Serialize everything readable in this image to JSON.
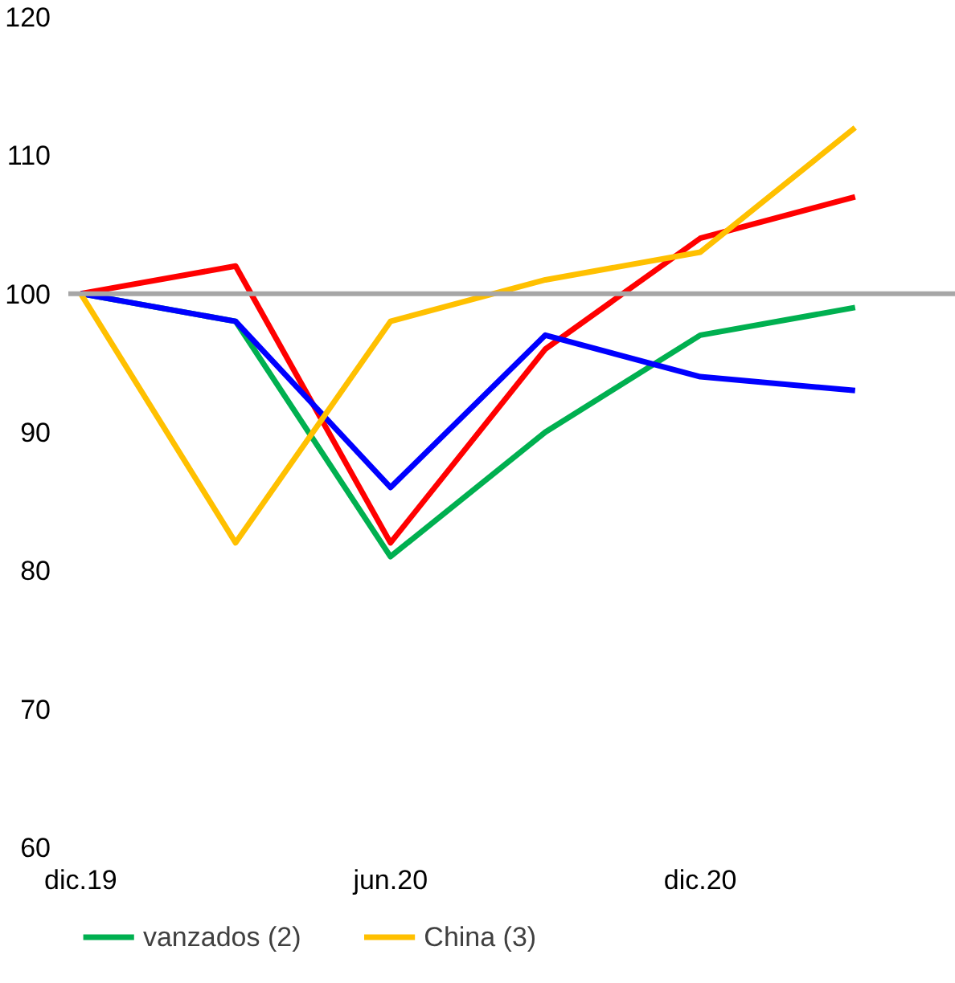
{
  "chart_data": {
    "type": "line",
    "categories": [
      "dic.19",
      null,
      "jun.20",
      null,
      "dic.20",
      null
    ],
    "series": [
      {
        "name": "vanzados (2)",
        "color": "#00b050",
        "values": [
          100,
          98,
          81,
          90,
          97,
          99
        ]
      },
      {
        "color": "#ff0000",
        "values": [
          100,
          102,
          82,
          96,
          104,
          107
        ]
      },
      {
        "color": "#0000ff",
        "values": [
          100,
          98,
          86,
          97,
          94,
          93
        ]
      },
      {
        "name": "China (3)",
        "color": "#ffc000",
        "values": [
          100,
          82,
          98,
          101,
          103,
          112
        ]
      }
    ],
    "ylim": [
      60,
      120
    ],
    "yticks": [
      60,
      70,
      80,
      90,
      100,
      110,
      120
    ],
    "ref_lines": [
      {
        "axis": "y",
        "value": 100,
        "color": "#a6a6a6"
      }
    ],
    "grid": false,
    "legend": "bottom",
    "marker": "none",
    "line_style": "solid"
  }
}
